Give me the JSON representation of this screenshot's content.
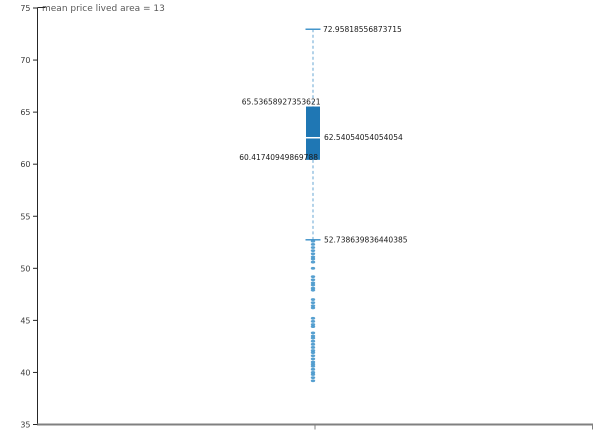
{
  "chart_data": {
    "type": "box",
    "title": "mean price lived area = 13",
    "xlabel": "",
    "ylabel": "",
    "ylim": [
      35,
      75
    ],
    "yticks": [
      75,
      70,
      65,
      60,
      55,
      50,
      45,
      40,
      35
    ],
    "grid": false,
    "legend": "none",
    "box": {
      "upper_whisker": 72.95818556873715,
      "q3": 65.53658927353621,
      "median": 62.54054054054054,
      "q1": 60.41740949869788,
      "lower_whisker": 52.738639836440385,
      "outliers": [
        52.6,
        52.3,
        52.0,
        51.7,
        51.4,
        51.1,
        50.9,
        50.6,
        50.0,
        49.2,
        48.9,
        48.6,
        48.4,
        48.1,
        47.9,
        47.0,
        46.7,
        46.4,
        46.2,
        45.2,
        44.9,
        44.6,
        44.4,
        43.8,
        43.5,
        43.3,
        43.0,
        42.7,
        42.4,
        42.1,
        41.9,
        41.6,
        41.3,
        41.0,
        40.8,
        40.6,
        40.3,
        40.0,
        39.8,
        39.5,
        39.2
      ]
    },
    "annotations": {
      "upper_whisker": "72.95818556873715",
      "q3": "65.53658927353621",
      "median": "62.54054054054054",
      "q1": "60.41740949869788",
      "lower_whisker": "52.738639836440385"
    },
    "colors": {
      "box_fill": "#1f77b4",
      "whisker": "#8abbdd",
      "cap": "#4596cb",
      "flier": "#4596cb",
      "median_line": "#ffffff",
      "annotation_text": "#1a1a1a",
      "tick_text": "#3c3c3c",
      "title_text": "#595959",
      "left_spine": "#262626",
      "bottom_spine": "#808080"
    }
  }
}
